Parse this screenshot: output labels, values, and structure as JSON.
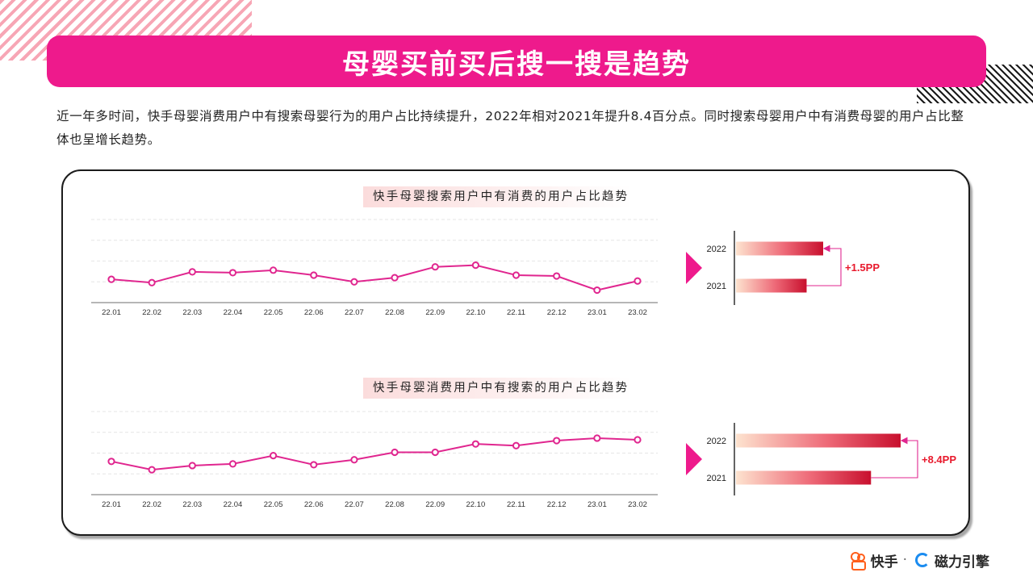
{
  "header": {
    "title": "母婴买前买后搜一搜是趋势"
  },
  "intro": {
    "text": "近一年多时间，快手母婴消费用户中有搜索母婴行为的用户占比持续提升，2022年相对2021年提升8.4百分点。同时搜索母婴用户中有消费母婴的用户占比整体也呈增长趋势。"
  },
  "footer": {
    "brand1": "快手",
    "separator": "·",
    "brand2": "磁力引擎"
  },
  "colors": {
    "accent": "#ee1a8c",
    "line": "#e0268f",
    "bar_dark": "#c8102e",
    "bar_light": "#fde3cf",
    "annotation": "#e8192c"
  },
  "chart_data": [
    {
      "type": "line",
      "title": "快手母婴搜索用户中有消费的用户占比趋势",
      "categories": [
        "22.01",
        "22.02",
        "22.03",
        "22.04",
        "22.05",
        "22.06",
        "22.07",
        "22.08",
        "22.09",
        "22.10",
        "22.11",
        "22.12",
        "23.01",
        "23.02"
      ],
      "values": [
        28,
        24,
        37,
        36,
        39,
        33,
        25,
        30,
        43,
        45,
        33,
        32,
        15,
        26
      ],
      "ylim": [
        0,
        100
      ],
      "grid": true,
      "yaxis_labels": false
    },
    {
      "type": "bar",
      "orientation": "horizontal",
      "categories": [
        "2022",
        "2021"
      ],
      "values": [
        100,
        81
      ],
      "annotation": "+1.5PP"
    },
    {
      "type": "line",
      "title": "快手母婴消费用户中有搜索的用户占比趋势",
      "categories": [
        "22.01",
        "22.02",
        "22.03",
        "22.04",
        "22.05",
        "22.06",
        "22.07",
        "22.08",
        "22.09",
        "22.10",
        "22.11",
        "22.12",
        "23.01",
        "23.02"
      ],
      "values": [
        40,
        30,
        35,
        37,
        47,
        36,
        42,
        51,
        51,
        61,
        59,
        65,
        68,
        66
      ],
      "ylim": [
        0,
        100
      ],
      "grid": true,
      "yaxis_labels": false
    },
    {
      "type": "bar",
      "orientation": "horizontal",
      "categories": [
        "2022",
        "2021"
      ],
      "values": [
        100,
        82
      ],
      "annotation": "+8.4PP"
    }
  ]
}
